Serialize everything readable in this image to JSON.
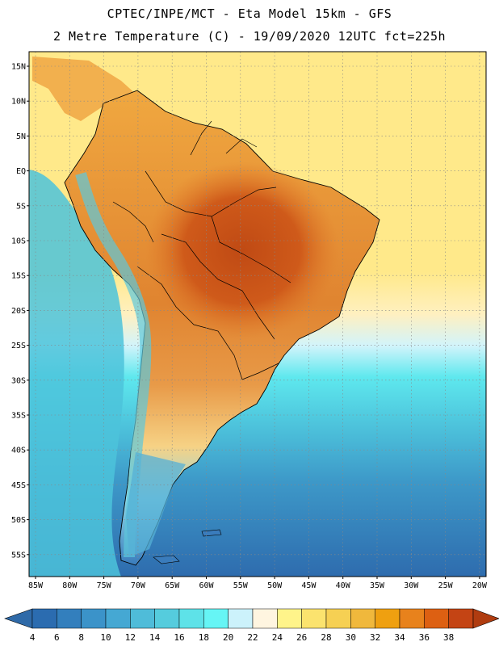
{
  "header": {
    "title_line1": "CPTEC/INPE/MCT -  Eta Model 15km - GFS",
    "title_line2": "2 Metre Temperature (C) - 19/09/2020 12UTC fct=225h"
  },
  "axes": {
    "lat_labels": [
      "15N",
      "10N",
      "5N",
      "EQ",
      "5S",
      "10S",
      "15S",
      "20S",
      "25S",
      "30S",
      "35S",
      "40S",
      "45S",
      "50S",
      "55S"
    ],
    "lon_labels": [
      "85W",
      "80W",
      "75W",
      "70W",
      "65W",
      "60W",
      "55W",
      "50W",
      "45W",
      "40W",
      "35W",
      "30W",
      "25W",
      "20W"
    ]
  },
  "colorbar": {
    "labels": [
      "4",
      "6",
      "8",
      "10",
      "12",
      "14",
      "16",
      "18",
      "20",
      "22",
      "24",
      "26",
      "28",
      "30",
      "32",
      "34",
      "36",
      "38"
    ],
    "colors": [
      "#2b6cb0",
      "#337fbd",
      "#3b93c9",
      "#45a8d3",
      "#4fbcd9",
      "#55ccdd",
      "#5ee2e8",
      "#66f5f5",
      "#ccf2fb",
      "#fff5e0",
      "#fff48a",
      "#fbe36e",
      "#f6d053",
      "#f0b83c",
      "#efa010",
      "#e8821c",
      "#dd6012",
      "#c44414"
    ],
    "low_color": "#2f6aa8",
    "high_color": "#b03c10"
  }
}
